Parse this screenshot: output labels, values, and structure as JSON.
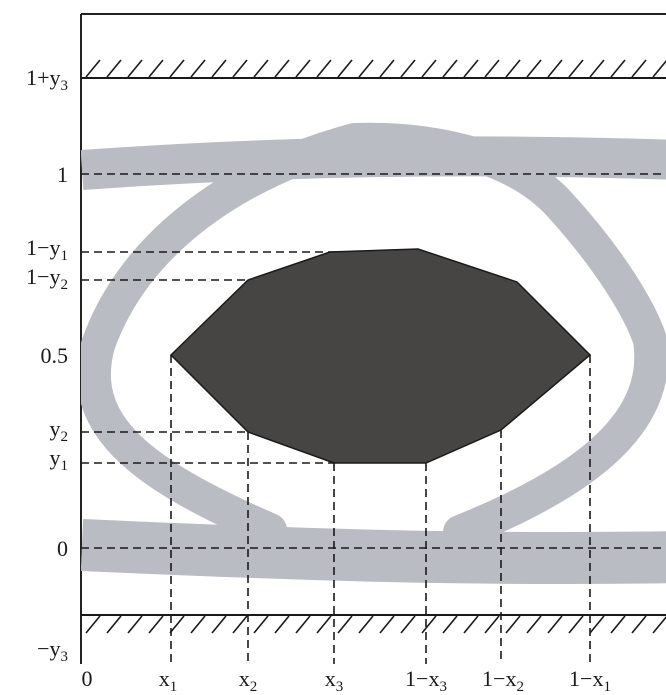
{
  "diagram": {
    "y_levels": [
      {
        "id": "one-plus-y3",
        "text": "1+y",
        "sub": "3"
      },
      {
        "id": "one",
        "text": "1",
        "sub": ""
      },
      {
        "id": "one-minus-y1",
        "text": "1−y",
        "sub": "1"
      },
      {
        "id": "one-minus-y2",
        "text": "1−y",
        "sub": "2"
      },
      {
        "id": "half",
        "text": "0.5",
        "sub": ""
      },
      {
        "id": "y2",
        "text": "y",
        "sub": "2"
      },
      {
        "id": "y1",
        "text": "y",
        "sub": "1"
      },
      {
        "id": "zero",
        "text": "0",
        "sub": ""
      },
      {
        "id": "minus-y3",
        "text": "−y",
        "sub": "3"
      }
    ],
    "x_levels": [
      {
        "id": "zero",
        "text": "0",
        "sub": ""
      },
      {
        "id": "x1",
        "text": "x",
        "sub": "1"
      },
      {
        "id": "x2",
        "text": "x",
        "sub": "2"
      },
      {
        "id": "x3",
        "text": "x",
        "sub": "3"
      },
      {
        "id": "one-minus-x3",
        "text": "1−x",
        "sub": "3"
      },
      {
        "id": "one-minus-x2",
        "text": "1−x",
        "sub": "2"
      },
      {
        "id": "one-minus-x1",
        "text": "1−x",
        "sub": "1"
      }
    ],
    "colors": {
      "eye_band": "#b9bcc3",
      "mask": "#474444",
      "lines": "#1a1a1a",
      "frame": "#222222"
    }
  }
}
